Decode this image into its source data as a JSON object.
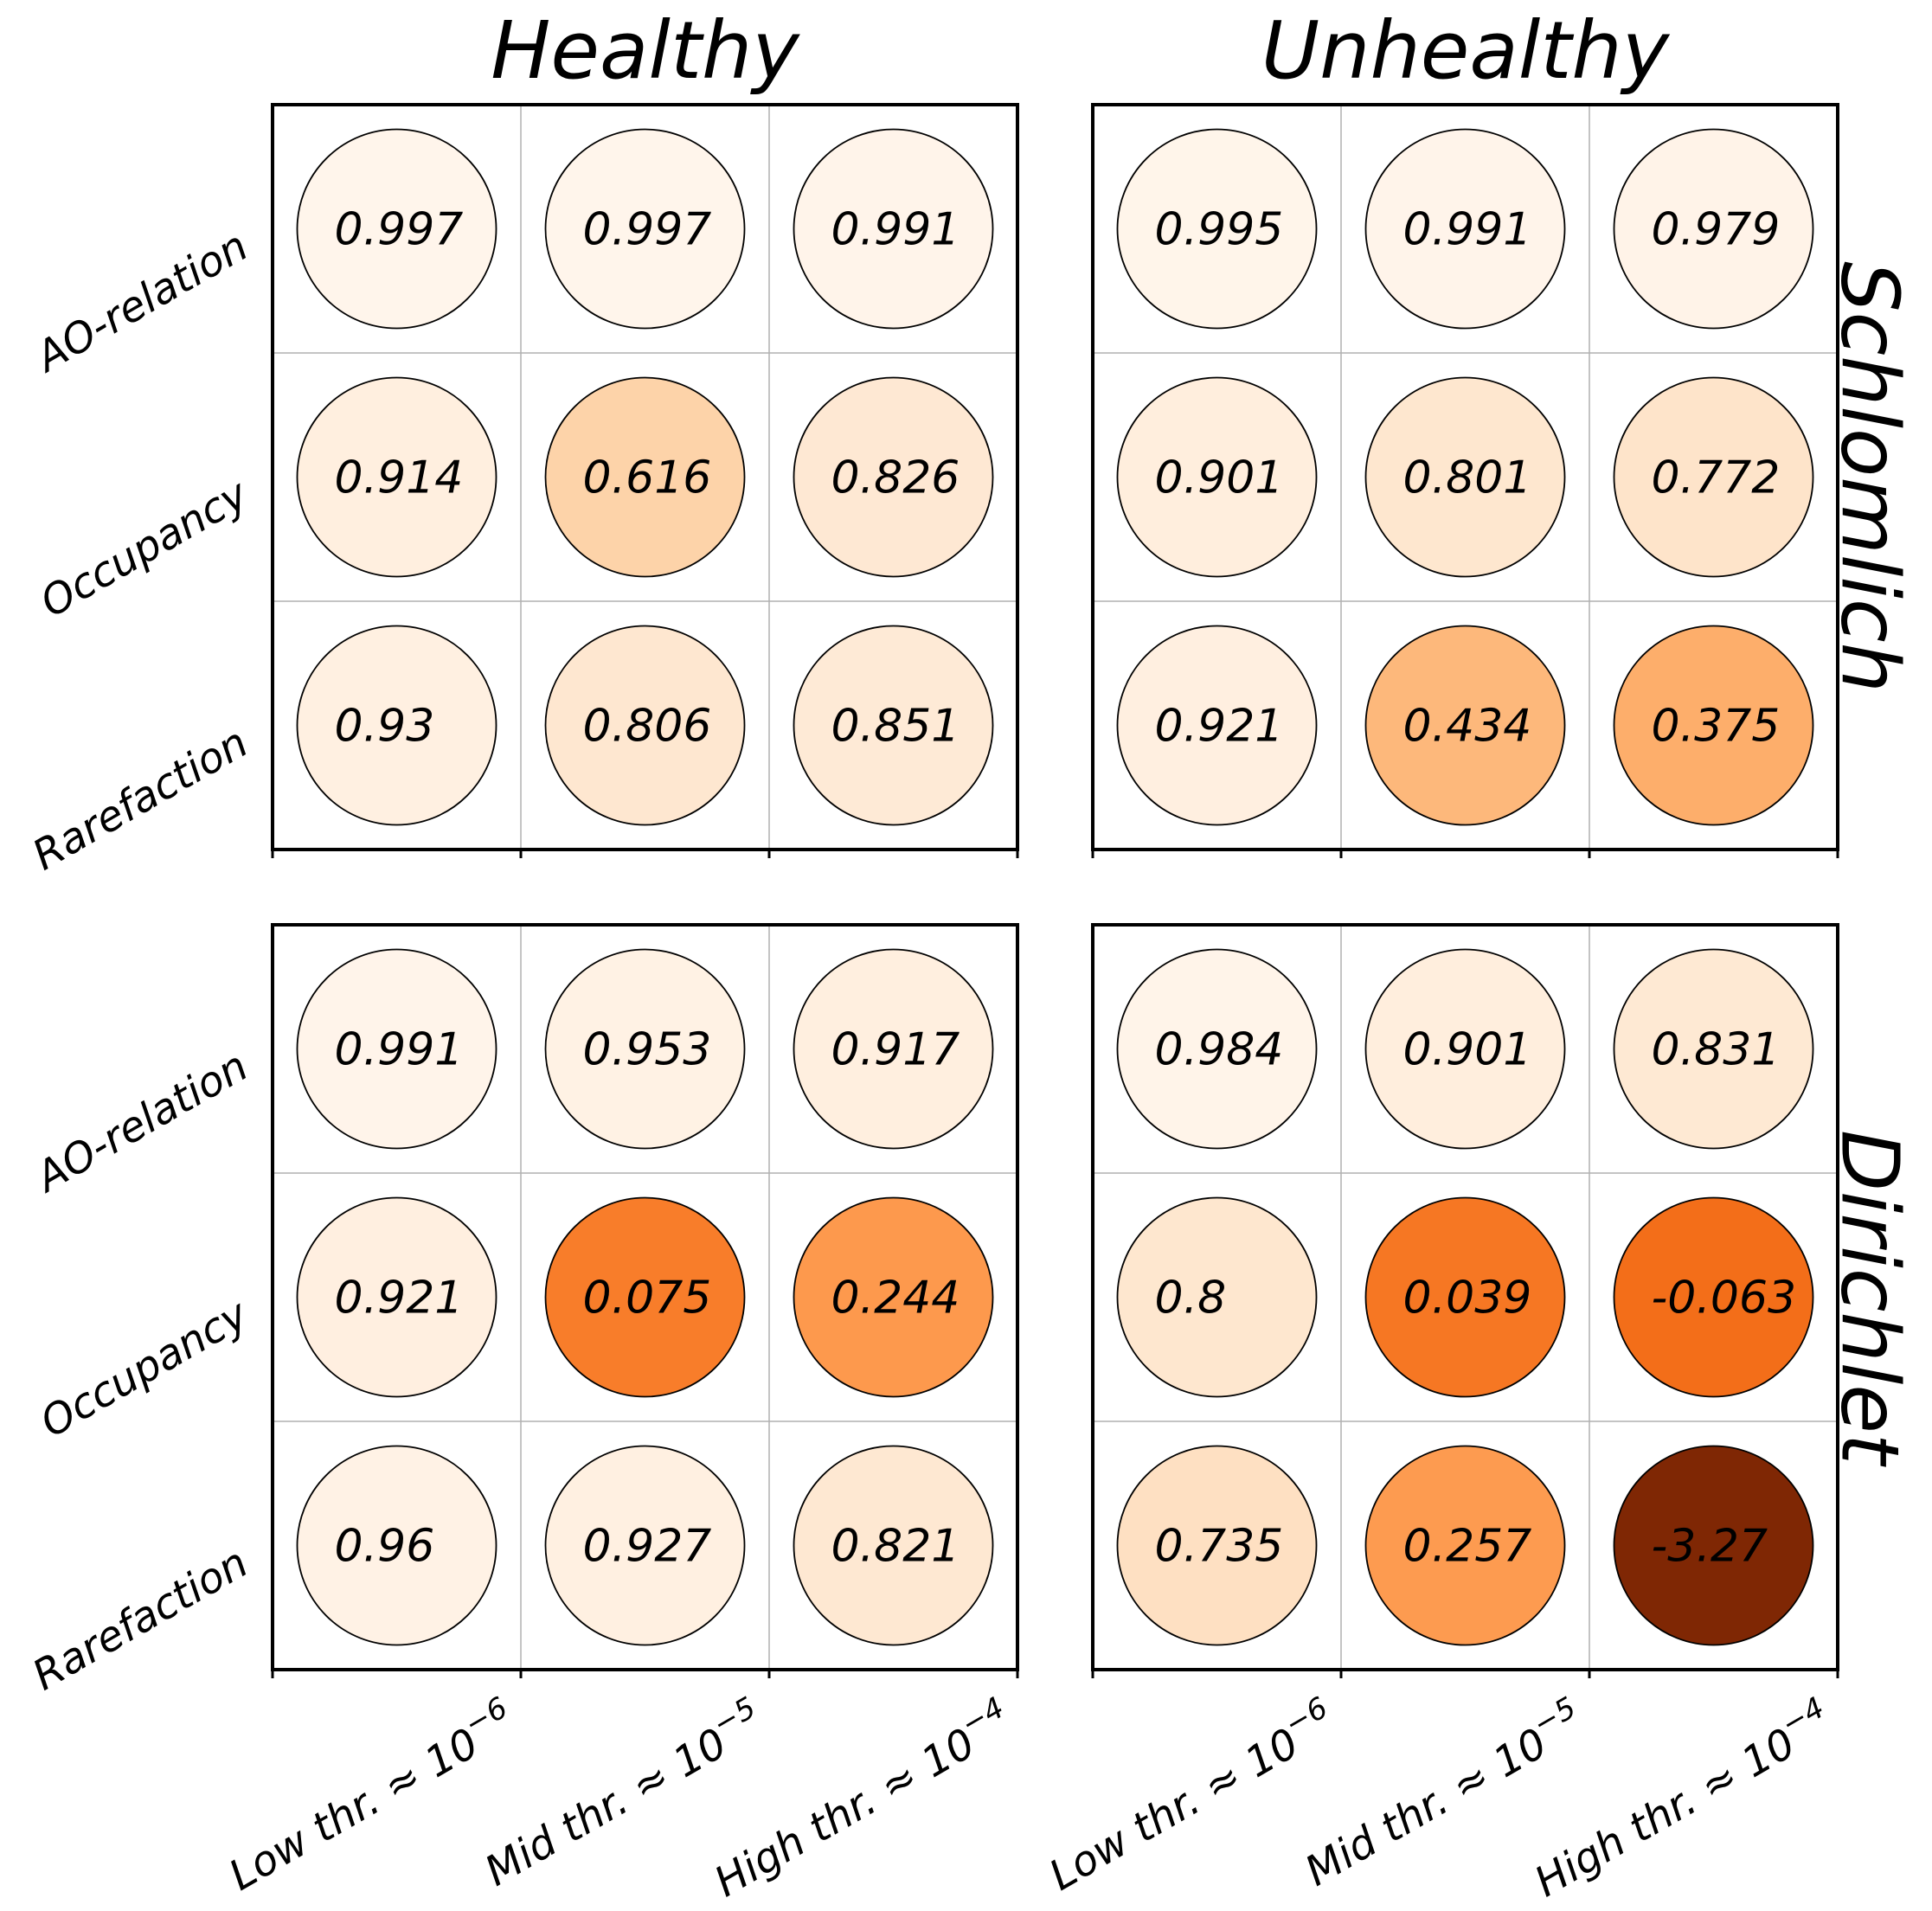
{
  "chart_data": {
    "type": "heatmap",
    "column_titles": [
      "Healthy",
      "Unhealthy"
    ],
    "row_titles": [
      "Schlomlich",
      "Dirichlet"
    ],
    "row_labels": [
      "AO-relation",
      "Occupancy",
      "Rarefaction"
    ],
    "col_labels": [
      {
        "text": "Low thr. ≈ 10",
        "exp": "−6"
      },
      {
        "text": "Mid thr. ≈ 10",
        "exp": "−5"
      },
      {
        "text": "High thr. ≈ 10",
        "exp": "−4"
      }
    ],
    "color_scale": {
      "low_value": -3.27,
      "high_value": 1.0,
      "colormap": "Oranges (reversed: high = light)"
    },
    "grid": true,
    "panels": [
      {
        "row_title": "Schlomlich",
        "column_title": "Healthy",
        "values": [
          [
            0.997,
            0.997,
            0.991
          ],
          [
            0.914,
            0.616,
            0.826
          ],
          [
            0.93,
            0.806,
            0.851
          ]
        ],
        "labels": [
          [
            "0.997",
            "0.997",
            "0.991"
          ],
          [
            "0.914",
            "0.616",
            "0.826"
          ],
          [
            "0.93",
            "0.806",
            "0.851"
          ]
        ]
      },
      {
        "row_title": "Schlomlich",
        "column_title": "Unhealthy",
        "values": [
          [
            0.995,
            0.991,
            0.979
          ],
          [
            0.901,
            0.801,
            0.772
          ],
          [
            0.921,
            0.434,
            0.375
          ]
        ],
        "labels": [
          [
            "0.995",
            "0.991",
            "0.979"
          ],
          [
            "0.901",
            "0.801",
            "0.772"
          ],
          [
            "0.921",
            "0.434",
            "0.375"
          ]
        ]
      },
      {
        "row_title": "Dirichlet",
        "column_title": "Healthy",
        "values": [
          [
            0.991,
            0.953,
            0.917
          ],
          [
            0.921,
            0.075,
            0.244
          ],
          [
            0.96,
            0.927,
            0.821
          ]
        ],
        "labels": [
          [
            "0.991",
            "0.953",
            "0.917"
          ],
          [
            "0.921",
            "0.075",
            "0.244"
          ],
          [
            "0.96",
            "0.927",
            "0.821"
          ]
        ]
      },
      {
        "row_title": "Dirichlet",
        "column_title": "Unhealthy",
        "values": [
          [
            0.984,
            0.901,
            0.831
          ],
          [
            0.8,
            0.039,
            -0.063
          ],
          [
            0.735,
            0.257,
            -3.27
          ]
        ],
        "labels": [
          [
            "0.984",
            "0.901",
            "0.831"
          ],
          [
            "0.8",
            "0.039",
            "-0.063"
          ],
          [
            "0.735",
            "0.257",
            "-3.27"
          ]
        ]
      }
    ]
  }
}
